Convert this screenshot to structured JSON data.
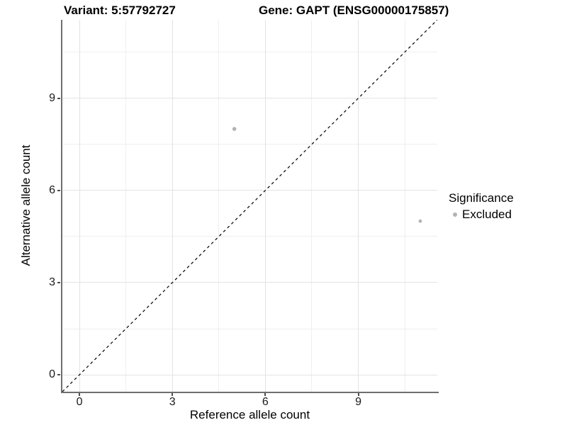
{
  "header": {
    "variant_title": "Variant: 5:57792727",
    "gene_title": "Gene: GAPT (ENSG00000175857)"
  },
  "legend": {
    "title": "Significance",
    "entries": [
      {
        "label": "Excluded",
        "marker": "dot",
        "color": "#b3b3b3"
      }
    ]
  },
  "chart_data": {
    "type": "scatter",
    "title": "Variant: 5:57792727    Gene: GAPT (ENSG00000175857)",
    "xlabel": "Reference allele count",
    "ylabel": "Alternative allele count",
    "xlim": [
      -0.55,
      11.55
    ],
    "ylim": [
      -0.55,
      11.55
    ],
    "x_major_ticks": [
      0,
      3,
      6,
      9
    ],
    "y_major_ticks": [
      0,
      3,
      6,
      9
    ],
    "x_tick_labels": [
      "0",
      "3",
      "6",
      "9"
    ],
    "y_tick_labels": [
      "0",
      "3",
      "6",
      "9"
    ],
    "x_minor_gridlines": [
      1.5,
      4.5,
      7.5,
      10.5
    ],
    "y_minor_gridlines": [
      1.5,
      4.5,
      7.5,
      10.5
    ],
    "grid": "major+minor",
    "legend_position": "right",
    "series": [
      {
        "name": "Excluded",
        "color": "#b3b3b3",
        "marker": "circle",
        "points": [
          {
            "x": 5,
            "y": 8,
            "r": 2.8
          },
          {
            "x": 11,
            "y": 5,
            "r": 2.4
          }
        ]
      }
    ],
    "identity_line": {
      "style": "dashed",
      "color": "#000000",
      "from": [
        -0.55,
        -0.55
      ],
      "to": [
        11.55,
        11.55
      ]
    }
  },
  "style": {
    "background": "#ffffff",
    "grid_major_color": "#e3e3e3",
    "grid_minor_color": "#efefef",
    "axis_line_color": "#6f6f6f",
    "point_color": "#b3b3b3"
  }
}
